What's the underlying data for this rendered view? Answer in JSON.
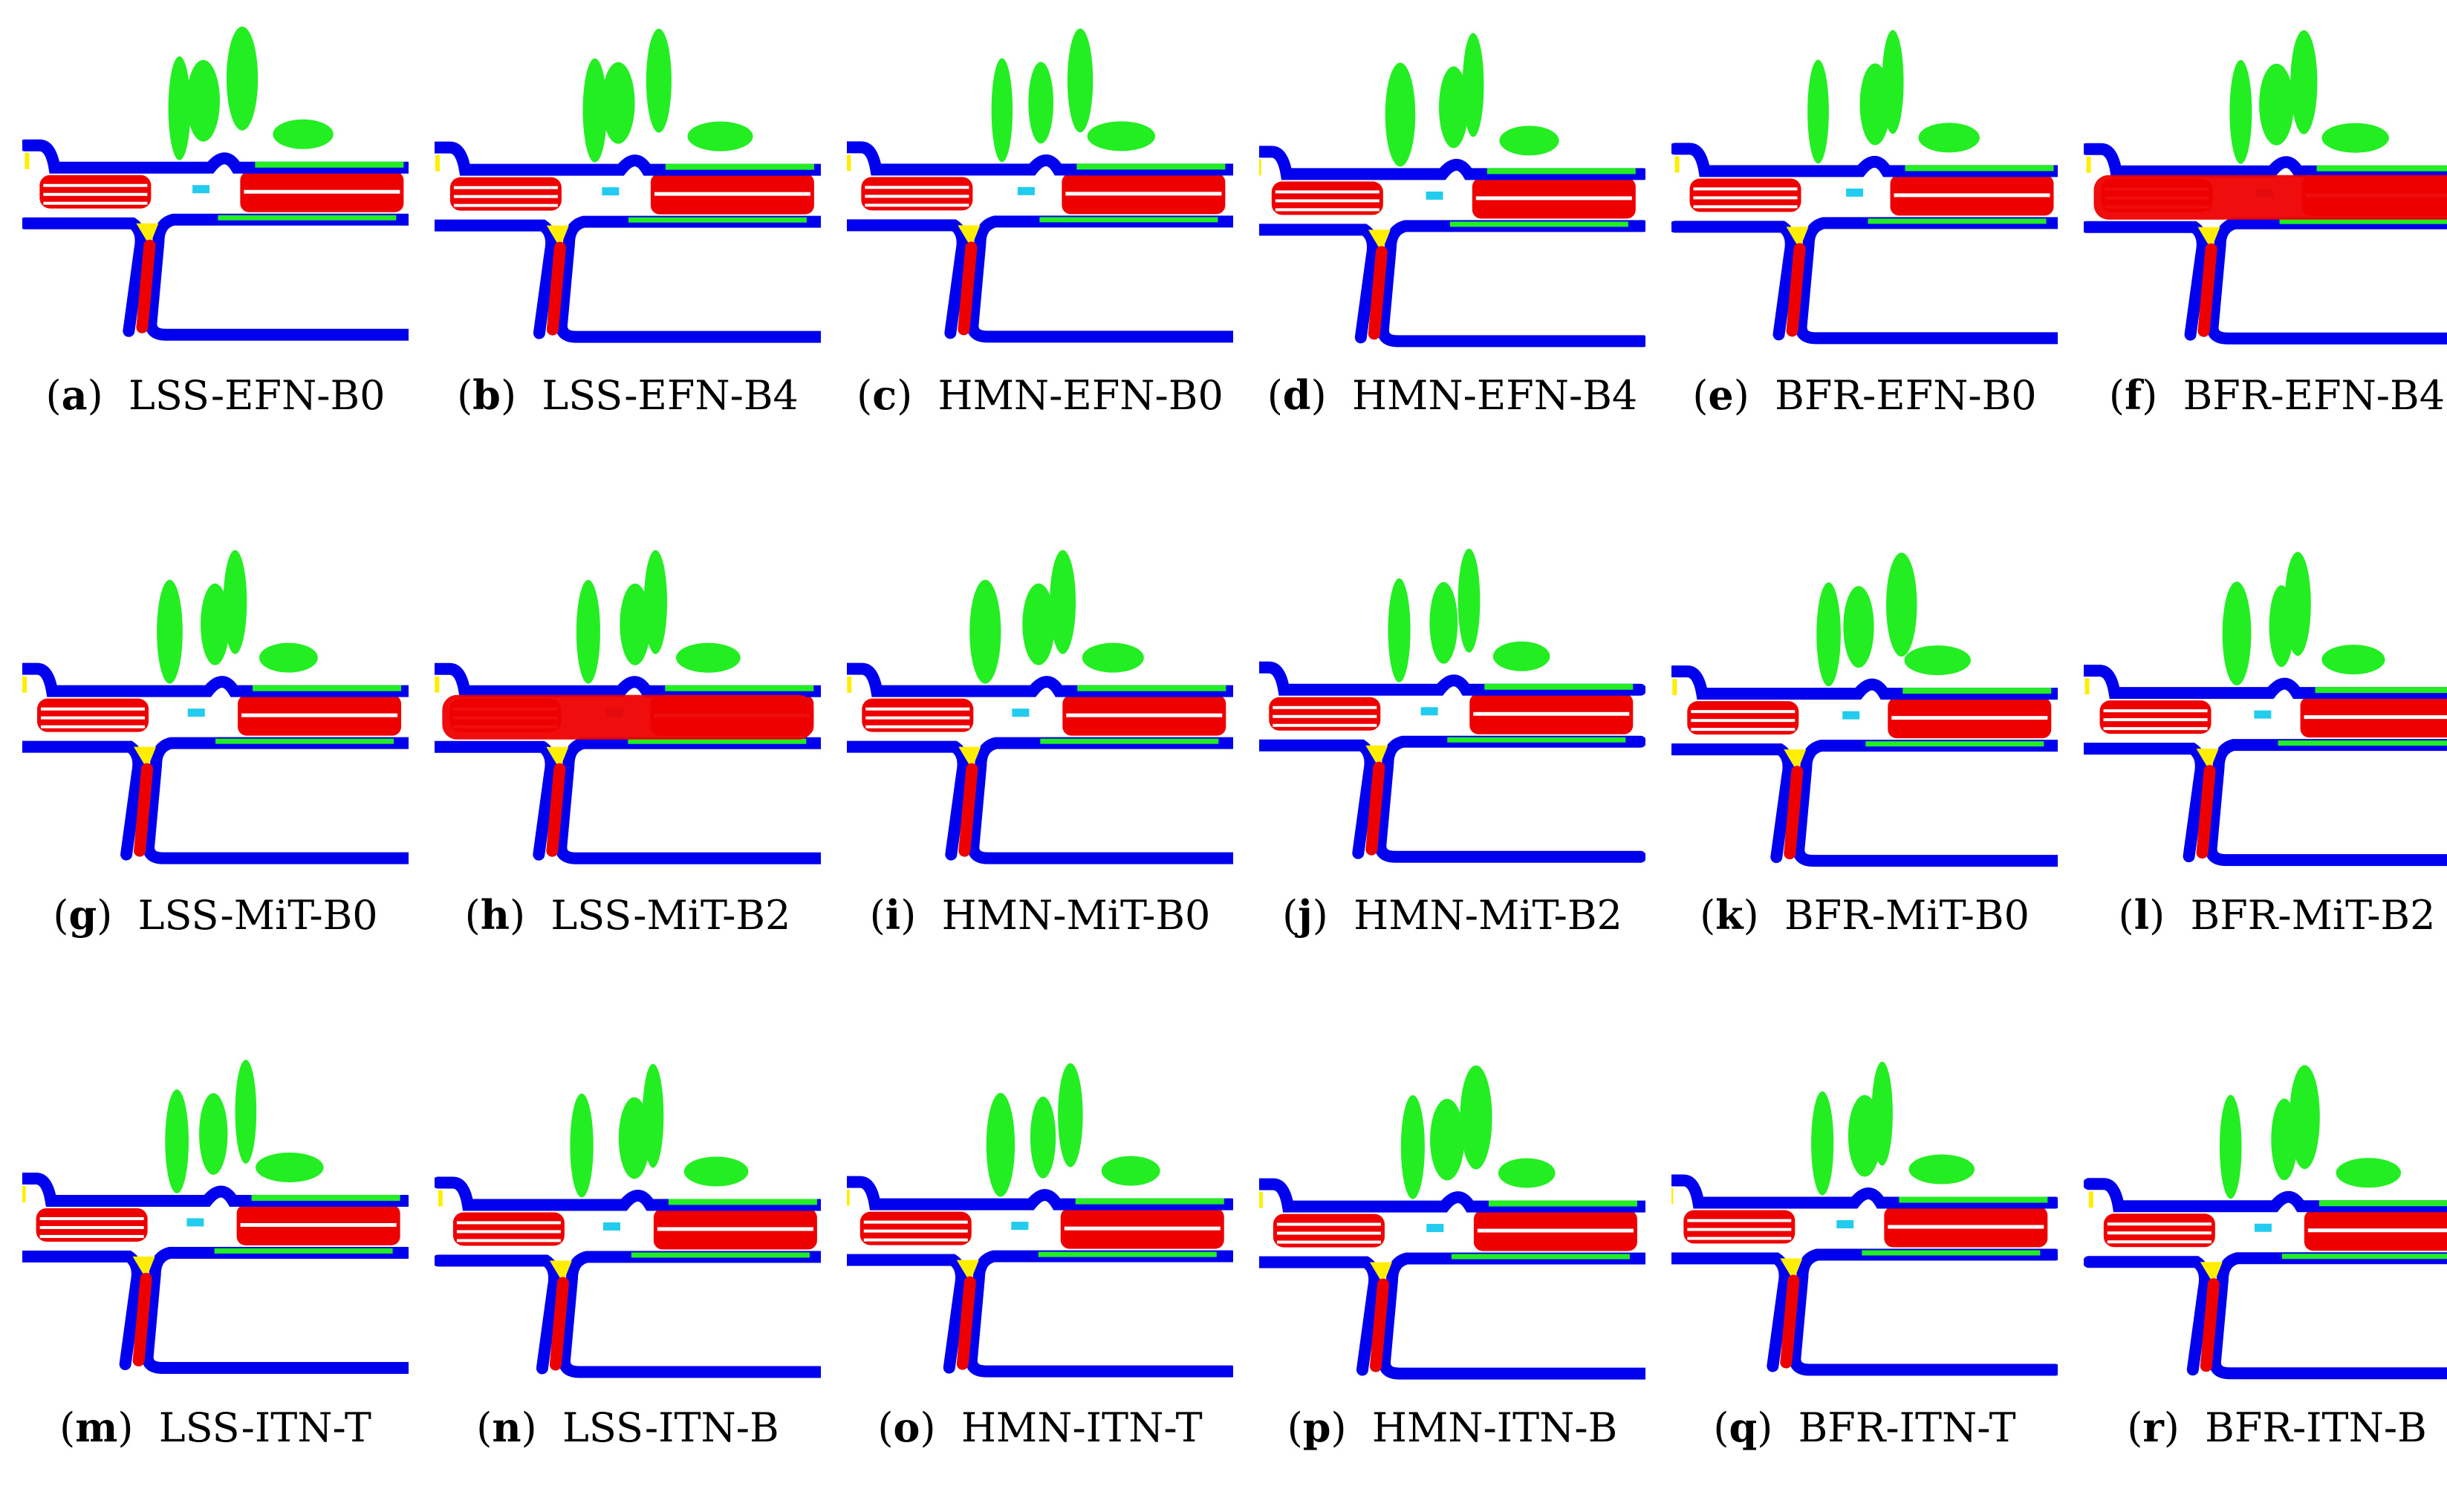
{
  "colors": {
    "road_boundary": "#0000ee",
    "vehicle": "#ee0000",
    "vegetation": "#22ee22",
    "crosswalk": "#ffee00",
    "small_object": "#22ccee",
    "background": "#ffffff"
  },
  "panels": [
    {
      "letter": "a",
      "label": "LSS-EFN-B0"
    },
    {
      "letter": "b",
      "label": "LSS-EFN-B4"
    },
    {
      "letter": "c",
      "label": "HMN-EFN-B0"
    },
    {
      "letter": "d",
      "label": "HMN-EFN-B4"
    },
    {
      "letter": "e",
      "label": "BFR-EFN-B0"
    },
    {
      "letter": "f",
      "label": "BFR-EFN-B4"
    },
    {
      "letter": "g",
      "label": "LSS-MiT-B0"
    },
    {
      "letter": "h",
      "label": "LSS-MiT-B2"
    },
    {
      "letter": "i",
      "label": "HMN-MiT-B0"
    },
    {
      "letter": "j",
      "label": "HMN-MiT-B2"
    },
    {
      "letter": "k",
      "label": "BFR-MiT-B0"
    },
    {
      "letter": "l",
      "label": "BFR-MiT-B2"
    },
    {
      "letter": "m",
      "label": "LSS-ITN-T"
    },
    {
      "letter": "n",
      "label": "LSS-ITN-B"
    },
    {
      "letter": "o",
      "label": "HMN-ITN-T"
    },
    {
      "letter": "p",
      "label": "HMN-ITN-B"
    },
    {
      "letter": "q",
      "label": "BFR-ITN-T"
    },
    {
      "letter": "r",
      "label": "BFR-ITN-B"
    }
  ]
}
